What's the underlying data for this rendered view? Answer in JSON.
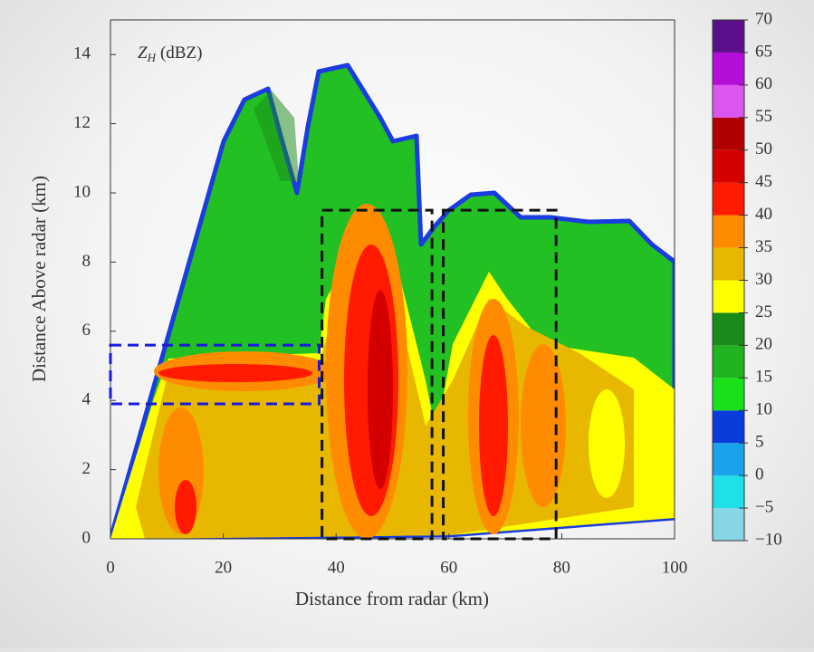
{
  "chart_data": {
    "type": "rhi",
    "title": {
      "symbol": "Z",
      "subscript": "H",
      "unit": "(dBZ)"
    },
    "xlabel": "Distance from radar (km)",
    "ylabel": "Distance Above radar (km)",
    "xlim": [
      0,
      100
    ],
    "xticks": [
      0,
      20,
      40,
      60,
      80,
      100
    ],
    "ylim": [
      0,
      15
    ],
    "yticks": [
      0,
      2,
      4,
      6,
      8,
      10,
      12,
      14
    ],
    "regions": [
      {
        "x": [
          0,
          37
        ],
        "y": [
          3.9,
          5.6
        ],
        "color": "#1a1adb"
      },
      {
        "x": [
          37.5,
          57
        ],
        "y": [
          0,
          9.5
        ],
        "color": "#111111"
      },
      {
        "x": [
          59,
          79
        ],
        "y": [
          0,
          9.5
        ],
        "color": "#111111"
      }
    ],
    "colorbar": {
      "levels": [
        -10,
        -5,
        0,
        5,
        10,
        15,
        20,
        25,
        30,
        35,
        40,
        45,
        50,
        55,
        60,
        65,
        70
      ],
      "ticks": [
        {
          "value": -10,
          "label": "−10"
        },
        {
          "value": -5,
          "label": "−5"
        },
        0,
        5,
        10,
        15,
        20,
        25,
        30,
        35,
        40,
        45,
        50,
        55,
        60,
        65,
        70
      ],
      "colors": [
        "#86d6e6",
        "#1fe0e8",
        "#1aa3ea",
        "#0a3cdc",
        "#1ae01a",
        "#22b322",
        "#1a8a1a",
        "#ffff00",
        "#e8b800",
        "#ff8c00",
        "#ff1a00",
        "#d40000",
        "#b00000",
        "#dd55f0",
        "#b40fd8",
        "#5b0f8a"
      ]
    }
  }
}
